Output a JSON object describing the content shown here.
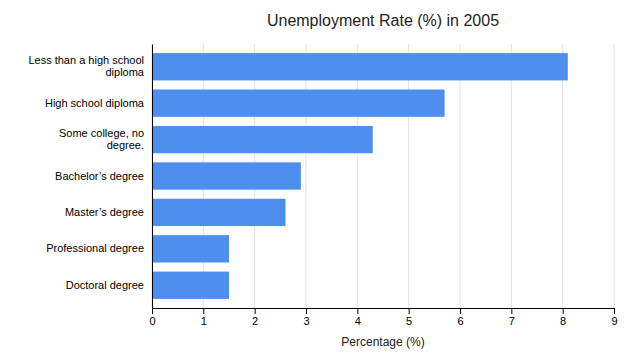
{
  "chart_data": {
    "type": "bar",
    "orientation": "horizontal",
    "title": "Unemployment Rate (%) in 2005",
    "xlabel": "Percentage (%)",
    "categories": [
      "Doctoral degree",
      "Professional degree",
      "Master’s degree",
      "Bachelor’s degree",
      "Some college, no\ndegree.",
      "High school diploma",
      "Less than a high school\ndiploma"
    ],
    "values": [
      1.5,
      1.5,
      2.6,
      2.9,
      4.3,
      5.7,
      8.1
    ],
    "color": "#4d8eef",
    "xlim": [
      0,
      9
    ],
    "xticks": [
      0,
      1,
      2,
      3,
      4,
      5,
      6,
      7,
      8,
      9
    ],
    "grid": true
  }
}
